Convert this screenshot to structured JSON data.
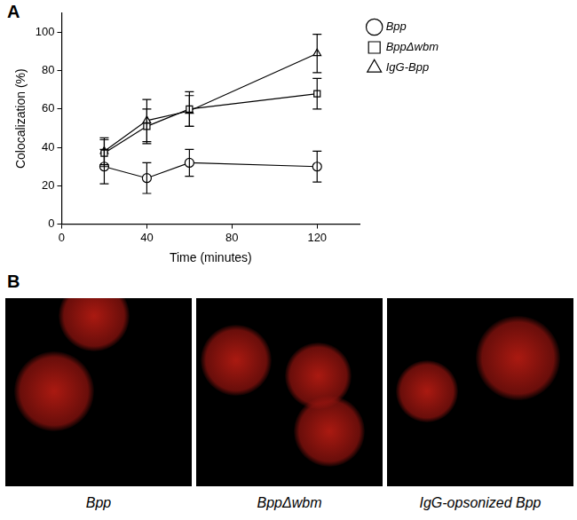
{
  "panel_labels": [
    "A",
    "B"
  ],
  "chart_data": {
    "type": "line",
    "x_label": "Time (minutes)",
    "y_label": "Colocalization (%)",
    "xlim": [
      0,
      140
    ],
    "xticks": [
      0,
      40,
      80,
      120
    ],
    "ylim": [
      0,
      110
    ],
    "yticks": [
      0,
      20,
      40,
      60,
      80,
      100
    ],
    "grid": false,
    "legend": "right",
    "x": [
      20,
      40,
      60,
      120
    ],
    "series": [
      {
        "name": "Bpp",
        "color": "#000000",
        "marker": "circle",
        "values": [
          30,
          24,
          32,
          30
        ],
        "errors": [
          9,
          8,
          7,
          8
        ]
      },
      {
        "name": "BppΔwbm",
        "color": "#000000",
        "marker": "square",
        "values": [
          37,
          51,
          60,
          68
        ],
        "errors": [
          7,
          9,
          9,
          8
        ]
      },
      {
        "name": "IgG-Bpp",
        "color": "#000000",
        "marker": "triangle",
        "values": [
          38,
          54,
          59,
          89
        ],
        "errors": [
          7,
          11,
          8,
          10
        ]
      }
    ]
  },
  "images": {
    "labels": [
      "Bpp",
      "BppΔwbm",
      "IgG-opsonized Bpp"
    ]
  }
}
